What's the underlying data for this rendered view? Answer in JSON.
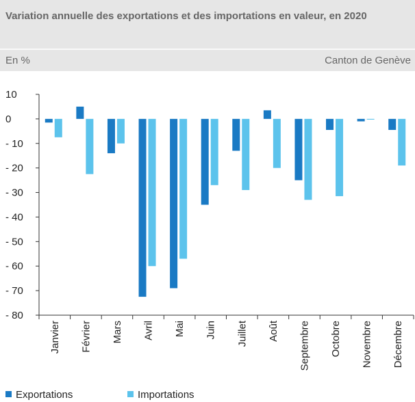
{
  "chart_data": {
    "type": "bar",
    "title": "Variation annuelle des exportations et des importations en valeur, en 2020",
    "subtitle": "En %",
    "source": "Canton de Genève",
    "categories": [
      "Janvier",
      "Février",
      "Mars",
      "Avril",
      "Mai",
      "Juin",
      "Juillet",
      "Août",
      "Septembre",
      "Octobre",
      "Novembre",
      "Décembre"
    ],
    "series": [
      {
        "name": "Exportations",
        "color": "#1a7ac4",
        "values": [
          -1.5,
          5,
          -14,
          -72.5,
          -69,
          -35,
          -13,
          3.5,
          -25,
          -4.5,
          -1,
          -4.5
        ]
      },
      {
        "name": "Importations",
        "color": "#5cc3ec",
        "values": [
          -7.5,
          -22.5,
          -10,
          -60,
          -57,
          -27,
          -29,
          -20,
          -33,
          -31.5,
          -0.3,
          -19
        ]
      }
    ],
    "ylim": [
      -80,
      10
    ],
    "yticks": [
      {
        "value": -80,
        "label": "- 80"
      },
      {
        "value": -70,
        "label": "- 70"
      },
      {
        "value": -60,
        "label": "- 60"
      },
      {
        "value": -50,
        "label": "- 50"
      },
      {
        "value": -40,
        "label": "- 40"
      },
      {
        "value": -30,
        "label": "- 30"
      },
      {
        "value": -20,
        "label": "- 20"
      },
      {
        "value": -10,
        "label": "- 10"
      },
      0,
      10
    ]
  }
}
